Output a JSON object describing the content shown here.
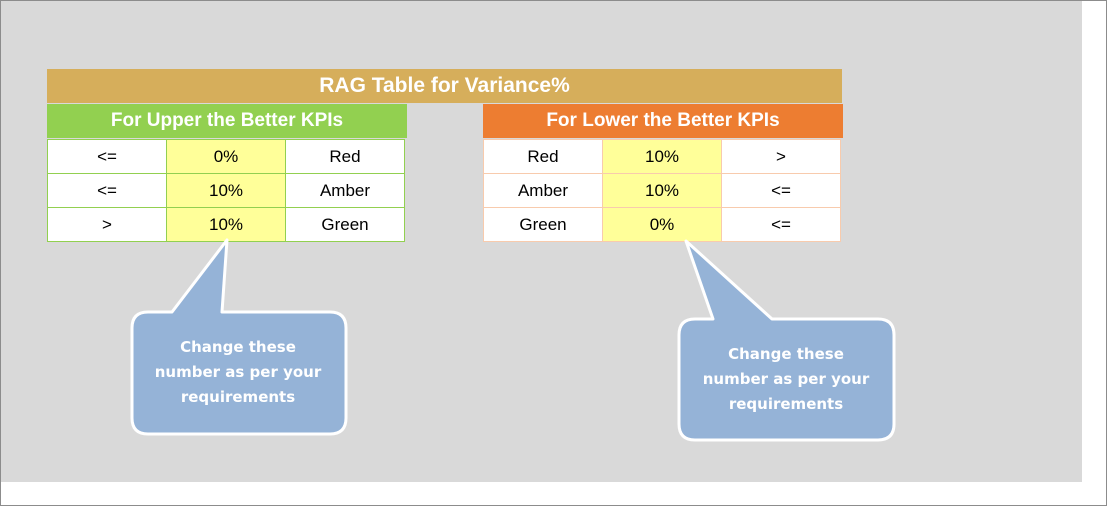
{
  "title": "RAG Table for Variance%",
  "upper_table": {
    "header": "For Upper the Better KPIs",
    "rows": [
      {
        "operator": "<=",
        "value": "0%",
        "status": "Red"
      },
      {
        "operator": "<=",
        "value": "10%",
        "status": "Amber"
      },
      {
        "operator": ">",
        "value": "10%",
        "status": "Green"
      }
    ]
  },
  "lower_table": {
    "header": "For Lower the Better KPIs",
    "rows": [
      {
        "status": "Red",
        "value": "10%",
        "operator": ">"
      },
      {
        "status": "Amber",
        "value": "10%",
        "operator": "<="
      },
      {
        "status": "Green",
        "value": "0%",
        "operator": "<="
      }
    ]
  },
  "callouts": {
    "left": {
      "line1": "Change these",
      "line2": "number as per your",
      "line3": "requirements"
    },
    "right": {
      "line1": "Change these",
      "line2": "number as per your",
      "line3": "requirements"
    }
  },
  "colors": {
    "title_bar": "#d6ae5b",
    "upper_header": "#92d050",
    "lower_header": "#ed7d31",
    "value_cell": "#ffff99",
    "callout_fill": "#95b3d7",
    "background": "#d9d9d9"
  }
}
